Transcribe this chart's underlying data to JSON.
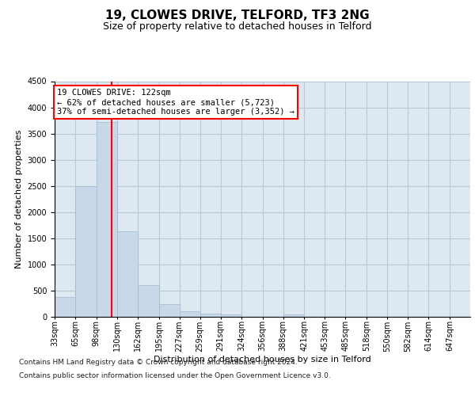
{
  "title": "19, CLOWES DRIVE, TELFORD, TF3 2NG",
  "subtitle": "Size of property relative to detached houses in Telford",
  "xlabel": "Distribution of detached houses by size in Telford",
  "ylabel": "Number of detached properties",
  "bar_color": "#c8d8e8",
  "bar_edge_color": "#a0b8d0",
  "grid_color": "#b8c8d8",
  "background_color": "#dde8f0",
  "vline_color": "red",
  "vline_x": 122,
  "annotation_text": "19 CLOWES DRIVE: 122sqm\n← 62% of detached houses are smaller (5,723)\n37% of semi-detached houses are larger (3,352) →",
  "annotation_box_facecolor": "white",
  "annotation_box_edgecolor": "red",
  "bin_edges": [
    33,
    65,
    98,
    130,
    162,
    195,
    227,
    259,
    291,
    324,
    356,
    388,
    421,
    453,
    485,
    518,
    550,
    582,
    614,
    647,
    679
  ],
  "bar_heights": [
    380,
    2500,
    3720,
    1630,
    600,
    240,
    110,
    60,
    40,
    0,
    0,
    50,
    0,
    0,
    0,
    0,
    0,
    0,
    0,
    0
  ],
  "ylim": [
    0,
    4500
  ],
  "yticks": [
    0,
    500,
    1000,
    1500,
    2000,
    2500,
    3000,
    3500,
    4000,
    4500
  ],
  "footer_line1": "Contains HM Land Registry data © Crown copyright and database right 2024.",
  "footer_line2": "Contains public sector information licensed under the Open Government Licence v3.0.",
  "title_fontsize": 11,
  "subtitle_fontsize": 9,
  "xlabel_fontsize": 8,
  "ylabel_fontsize": 8,
  "tick_fontsize": 7,
  "annotation_fontsize": 7.5,
  "footer_fontsize": 6.5
}
